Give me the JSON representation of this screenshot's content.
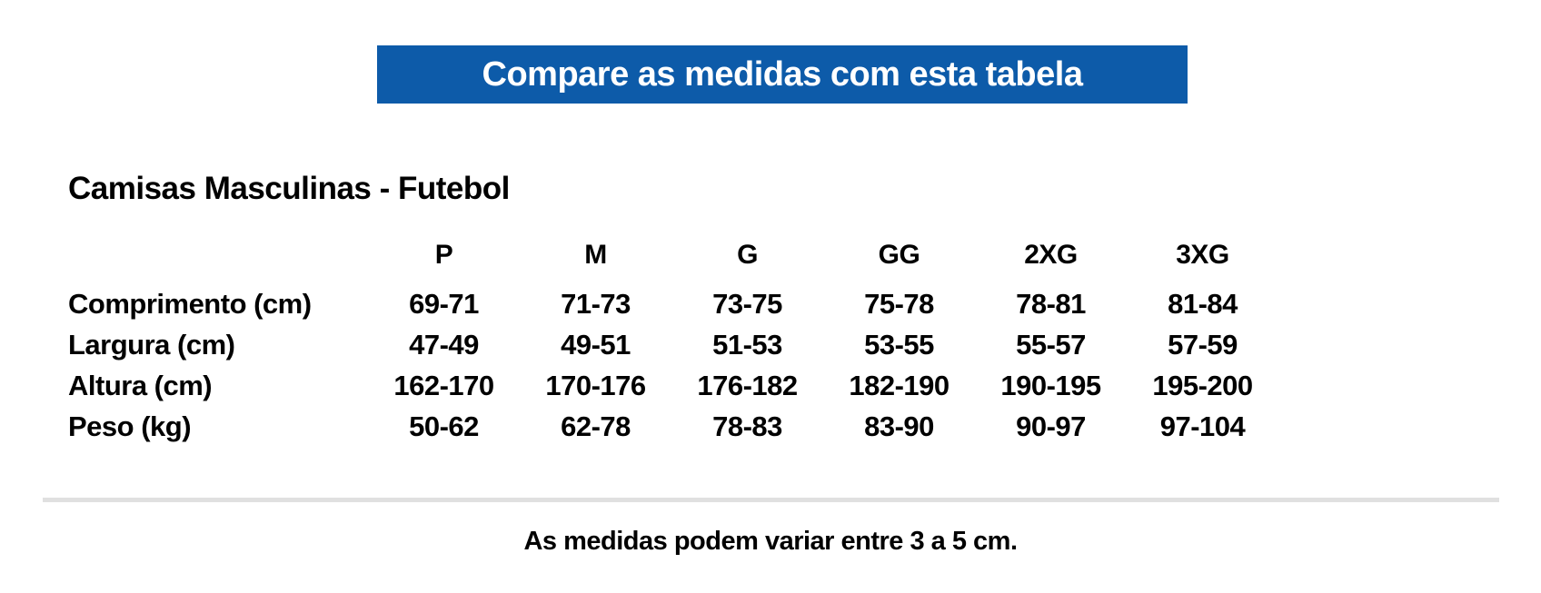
{
  "banner": {
    "label": "Compare as medidas com esta tabela",
    "background_color": "#0d5ba9",
    "text_color": "#ffffff"
  },
  "section": {
    "title": "Camisas Masculinas - Futebol"
  },
  "size_table": {
    "column_headers": [
      "P",
      "M",
      "G",
      "GG",
      "2XG",
      "3XG"
    ],
    "rows": [
      {
        "label": "Comprimento (cm)",
        "values": [
          "69-71",
          "71-73",
          "73-75",
          "75-78",
          "78-81",
          "81-84"
        ]
      },
      {
        "label": "Largura (cm)",
        "values": [
          "47-49",
          "49-51",
          "51-53",
          "53-55",
          "55-57",
          "57-59"
        ]
      },
      {
        "label": "Altura (cm)",
        "values": [
          "162-170",
          "170-176",
          "176-182",
          "182-190",
          "190-195",
          "195-200"
        ]
      },
      {
        "label": "Peso (kg)",
        "values": [
          "50-62",
          "62-78",
          "78-83",
          "83-90",
          "90-97",
          "97-104"
        ]
      }
    ]
  },
  "footer": {
    "note": "As medidas podem variar entre 3 a 5 cm."
  },
  "colors": {
    "accent_blue": "#0d5ba9",
    "divider_gray": "#e0e0e0",
    "text_black": "#000000"
  }
}
